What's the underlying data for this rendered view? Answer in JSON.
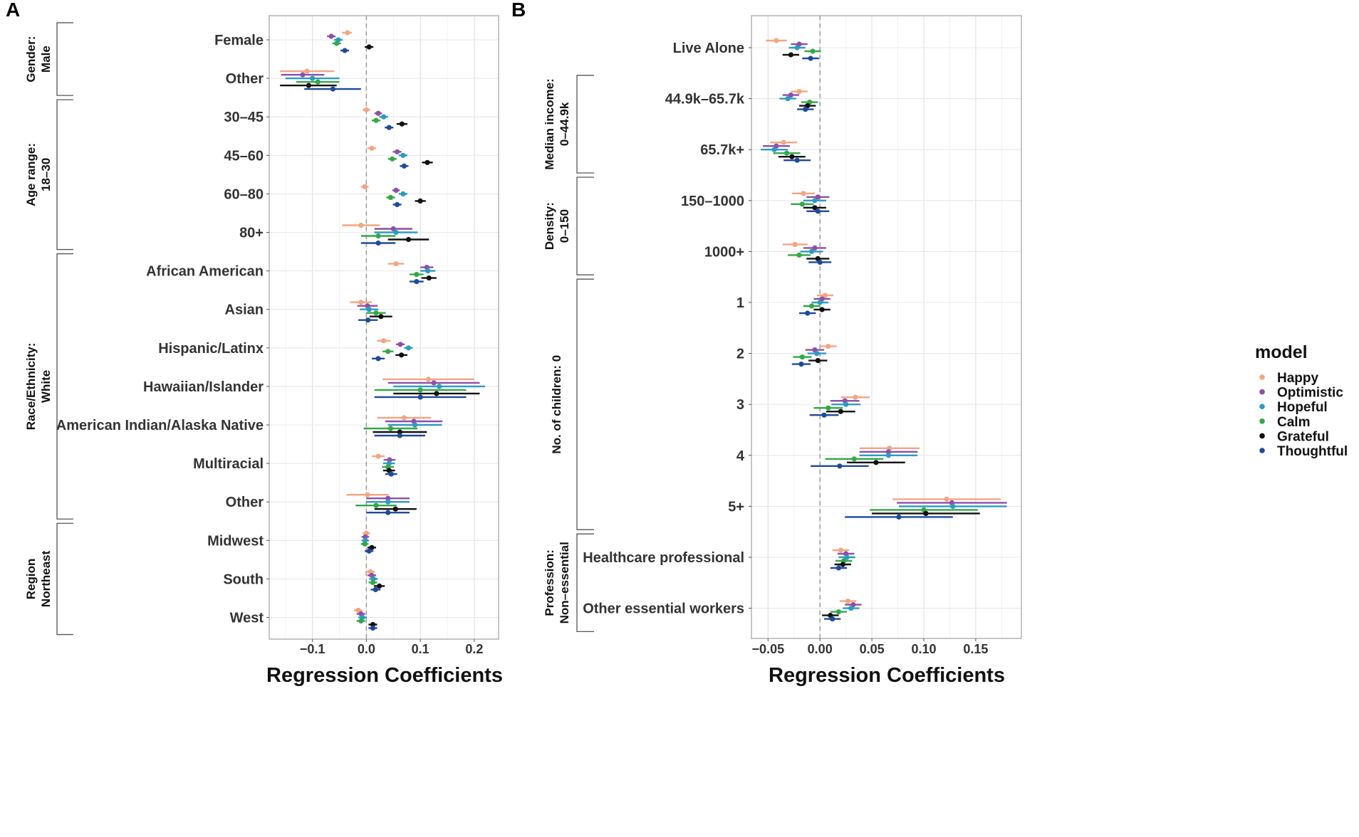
{
  "panels": [
    {
      "letter": "A",
      "xlabel": "Regression Coefficients",
      "xlim": [
        -0.18,
        0.245
      ],
      "xticks": [
        -0.1,
        0.0,
        0.1,
        0.2
      ],
      "xtick_labels": [
        "−0.1",
        "0.0",
        "0.1",
        "0.2"
      ],
      "groups": [
        {
          "line1": "Gender:",
          "line2": "Male",
          "first": 0,
          "last": 1
        },
        {
          "line1": "Age range:",
          "line2": "18–30",
          "first": 2,
          "last": 5
        },
        {
          "line1": "Race/Ethnicity:",
          "line2": "White",
          "first": 6,
          "last": 12
        },
        {
          "line1": "Region",
          "line2": "Northeast",
          "first": 13,
          "last": 15
        }
      ],
      "categories": [
        "Female",
        "Other",
        "30–45",
        "45–60",
        "60–80",
        "80+",
        "African American",
        "Asian",
        "Hispanic/Latinx",
        "Hawaiian/Islander",
        "American Indian/Alaska Native",
        "Multiracial",
        "Other",
        "Midwest",
        "South",
        "West"
      ],
      "series": [
        {
          "name": "Happy",
          "estimate": [
            -0.035,
            -0.11,
            0.0,
            0.01,
            -0.003,
            -0.01,
            0.055,
            -0.01,
            0.032,
            0.115,
            0.07,
            0.022,
            0.002,
            0.0,
            0.007,
            -0.015
          ],
          "lo": [
            -0.045,
            -0.16,
            -0.007,
            0.002,
            -0.01,
            -0.045,
            0.04,
            -0.03,
            0.02,
            0.03,
            0.02,
            0.01,
            -0.037,
            -0.007,
            -0.002,
            -0.023
          ],
          "hi": [
            -0.027,
            -0.06,
            0.007,
            0.018,
            0.004,
            0.025,
            0.07,
            0.01,
            0.045,
            0.2,
            0.12,
            0.034,
            0.041,
            0.007,
            0.016,
            -0.007
          ]
        },
        {
          "name": "Optimistic",
          "estimate": [
            -0.065,
            -0.118,
            0.022,
            0.057,
            0.055,
            0.05,
            0.112,
            0.002,
            0.063,
            0.125,
            0.088,
            0.043,
            0.04,
            -0.002,
            0.01,
            -0.01
          ],
          "lo": [
            -0.073,
            -0.158,
            0.015,
            0.049,
            0.048,
            0.015,
            0.1,
            -0.017,
            0.055,
            0.04,
            0.035,
            0.032,
            0.0,
            -0.009,
            0.002,
            -0.018
          ],
          "hi": [
            -0.057,
            -0.078,
            0.029,
            0.065,
            0.062,
            0.085,
            0.124,
            0.021,
            0.071,
            0.21,
            0.141,
            0.054,
            0.08,
            0.005,
            0.018,
            -0.002
          ]
        },
        {
          "name": "Hopeful",
          "estimate": [
            -0.052,
            -0.1,
            0.032,
            0.068,
            0.068,
            0.055,
            0.114,
            0.005,
            0.078,
            0.135,
            0.09,
            0.042,
            0.04,
            -0.002,
            0.013,
            -0.007
          ],
          "lo": [
            -0.06,
            -0.15,
            0.024,
            0.06,
            0.06,
            0.015,
            0.1,
            -0.012,
            0.07,
            0.05,
            0.04,
            0.031,
            0.0,
            -0.009,
            0.005,
            -0.015
          ],
          "hi": [
            -0.044,
            -0.05,
            0.04,
            0.076,
            0.076,
            0.095,
            0.128,
            0.022,
            0.086,
            0.22,
            0.14,
            0.053,
            0.08,
            0.005,
            0.021,
            0.001
          ]
        },
        {
          "name": "Calm",
          "estimate": [
            -0.055,
            -0.09,
            0.018,
            0.048,
            0.045,
            0.022,
            0.093,
            0.018,
            0.04,
            0.1,
            0.045,
            0.04,
            0.018,
            -0.003,
            0.012,
            -0.01
          ],
          "lo": [
            -0.063,
            -0.13,
            0.01,
            0.04,
            0.037,
            -0.01,
            0.08,
            0.0,
            0.03,
            0.015,
            -0.005,
            0.029,
            -0.02,
            -0.01,
            0.004,
            -0.018
          ],
          "hi": [
            -0.047,
            -0.05,
            0.026,
            0.056,
            0.053,
            0.054,
            0.106,
            0.036,
            0.05,
            0.185,
            0.095,
            0.051,
            0.056,
            0.004,
            0.02,
            -0.002
          ]
        },
        {
          "name": "Grateful",
          "estimate": [
            0.005,
            -0.107,
            0.066,
            0.113,
            0.1,
            0.078,
            0.116,
            0.027,
            0.065,
            0.13,
            0.062,
            0.042,
            0.054,
            0.01,
            0.024,
            0.012
          ],
          "lo": [
            -0.003,
            -0.16,
            0.056,
            0.103,
            0.09,
            0.04,
            0.102,
            0.006,
            0.054,
            0.05,
            0.012,
            0.031,
            0.015,
            0.002,
            0.014,
            0.004
          ],
          "hi": [
            0.013,
            -0.055,
            0.076,
            0.123,
            0.11,
            0.116,
            0.13,
            0.048,
            0.076,
            0.21,
            0.112,
            0.053,
            0.093,
            0.018,
            0.034,
            0.02
          ]
        },
        {
          "name": "Thoughtful",
          "estimate": [
            -0.04,
            -0.062,
            0.042,
            0.07,
            0.057,
            0.022,
            0.093,
            0.003,
            0.022,
            0.1,
            0.062,
            0.046,
            0.04,
            0.005,
            0.017,
            0.012
          ],
          "lo": [
            -0.048,
            -0.115,
            0.034,
            0.062,
            0.049,
            -0.01,
            0.08,
            -0.015,
            0.01,
            0.015,
            0.015,
            0.035,
            0.0,
            -0.003,
            0.008,
            0.004
          ],
          "hi": [
            -0.032,
            -0.01,
            0.05,
            0.078,
            0.065,
            0.054,
            0.106,
            0.021,
            0.034,
            0.185,
            0.109,
            0.057,
            0.08,
            0.013,
            0.026,
            0.02
          ]
        }
      ]
    },
    {
      "letter": "B",
      "xlabel": "Regression Coefficients",
      "xlim": [
        -0.066,
        0.194
      ],
      "xticks": [
        -0.05,
        0.0,
        0.05,
        0.1,
        0.15
      ],
      "xtick_labels": [
        "−0.05",
        "0.00",
        "0.05",
        "0.10",
        "0.15"
      ],
      "groups": [
        {
          "line1": "Median income:",
          "line2": "0–44.9k",
          "first": 1,
          "last": 2
        },
        {
          "line1": "Density:",
          "line2": "0–150",
          "first": 3,
          "last": 4
        },
        {
          "line1": "No. of children: 0",
          "line2": "",
          "first": 5,
          "last": 9
        },
        {
          "line1": "Profession:",
          "line2": "Non–essential",
          "first": 10,
          "last": 11
        }
      ],
      "categories": [
        "Live Alone",
        "44.9k–65.7k",
        "65.7k+",
        "150–1000",
        "1000+",
        "1",
        "2",
        "3",
        "4",
        "5+",
        "Healthcare professional",
        "Other essential workers"
      ],
      "series": [
        {
          "name": "Happy",
          "estimate": [
            -0.042,
            -0.02,
            -0.035,
            -0.016,
            -0.024,
            0.005,
            0.008,
            0.034,
            0.067,
            0.122,
            0.02,
            0.027
          ],
          "lo": [
            -0.052,
            -0.028,
            -0.048,
            -0.027,
            -0.036,
            -0.003,
            0.0,
            0.02,
            0.038,
            0.07,
            0.012,
            0.019
          ],
          "hi": [
            -0.032,
            -0.012,
            -0.022,
            -0.005,
            -0.012,
            0.013,
            0.016,
            0.048,
            0.096,
            0.174,
            0.028,
            0.035
          ]
        },
        {
          "name": "Optimistic",
          "estimate": [
            -0.02,
            -0.028,
            -0.042,
            -0.002,
            -0.005,
            0.002,
            -0.005,
            0.024,
            0.066,
            0.127,
            0.025,
            0.032
          ],
          "lo": [
            -0.028,
            -0.036,
            -0.055,
            -0.013,
            -0.016,
            -0.006,
            -0.014,
            0.01,
            0.038,
            0.074,
            0.017,
            0.024
          ],
          "hi": [
            -0.012,
            -0.02,
            -0.029,
            0.009,
            0.006,
            0.01,
            0.004,
            0.038,
            0.094,
            0.18,
            0.033,
            0.04
          ]
        },
        {
          "name": "Hopeful",
          "estimate": [
            -0.022,
            -0.031,
            -0.044,
            -0.005,
            -0.008,
            0.0,
            -0.003,
            0.025,
            0.066,
            0.128,
            0.026,
            0.03
          ],
          "lo": [
            -0.03,
            -0.039,
            -0.057,
            -0.016,
            -0.019,
            -0.008,
            -0.012,
            0.011,
            0.038,
            0.076,
            0.018,
            0.022
          ],
          "hi": [
            -0.014,
            -0.023,
            -0.031,
            0.006,
            0.003,
            0.008,
            0.006,
            0.039,
            0.094,
            0.18,
            0.034,
            0.038
          ]
        },
        {
          "name": "Calm",
          "estimate": [
            -0.007,
            -0.01,
            -0.032,
            -0.017,
            -0.02,
            -0.008,
            -0.017,
            0.008,
            0.033,
            0.1,
            0.023,
            0.018
          ],
          "lo": [
            -0.015,
            -0.018,
            -0.045,
            -0.028,
            -0.031,
            -0.016,
            -0.026,
            -0.006,
            0.005,
            0.048,
            0.015,
            0.01
          ],
          "hi": [
            0.001,
            -0.002,
            -0.019,
            -0.006,
            -0.009,
            0.0,
            -0.008,
            0.022,
            0.061,
            0.152,
            0.031,
            0.026
          ]
        },
        {
          "name": "Grateful",
          "estimate": [
            -0.028,
            -0.012,
            -0.027,
            -0.005,
            -0.002,
            0.002,
            -0.002,
            0.02,
            0.054,
            0.102,
            0.022,
            0.01
          ],
          "lo": [
            -0.036,
            -0.02,
            -0.04,
            -0.016,
            -0.013,
            -0.006,
            -0.011,
            0.006,
            0.026,
            0.05,
            0.014,
            0.002
          ],
          "hi": [
            -0.02,
            -0.004,
            -0.014,
            0.006,
            0.009,
            0.01,
            0.007,
            0.034,
            0.082,
            0.154,
            0.03,
            0.018
          ]
        },
        {
          "name": "Thoughtful",
          "estimate": [
            -0.009,
            -0.014,
            -0.022,
            -0.002,
            0.0,
            -0.012,
            -0.018,
            0.004,
            0.019,
            0.076,
            0.018,
            0.012
          ],
          "lo": [
            -0.017,
            -0.022,
            -0.035,
            -0.013,
            -0.011,
            -0.02,
            -0.027,
            -0.01,
            -0.009,
            0.024,
            0.01,
            0.004
          ],
          "hi": [
            -0.001,
            -0.006,
            -0.009,
            0.009,
            0.011,
            -0.004,
            -0.009,
            0.018,
            0.047,
            0.128,
            0.026,
            0.02
          ]
        }
      ]
    }
  ],
  "legend": {
    "title": "model",
    "items": [
      {
        "label": "Happy",
        "color": "#F4A582"
      },
      {
        "label": "Optimistic",
        "color": "#8E4FA8"
      },
      {
        "label": "Hopeful",
        "color": "#2B9BC2"
      },
      {
        "label": "Calm",
        "color": "#33A846"
      },
      {
        "label": "Grateful",
        "color": "#111111"
      },
      {
        "label": "Thoughtful",
        "color": "#1F4A9A"
      }
    ]
  },
  "chart_data": [
    {
      "type": "forest",
      "panel": "A",
      "xlabel": "Regression Coefficients",
      "xlim": [
        -0.18,
        0.245
      ],
      "categories": [
        "Female",
        "Other",
        "30–45",
        "45–60",
        "60–80",
        "80+",
        "African American",
        "Asian",
        "Hispanic/Latinx",
        "Hawaiian/Islander",
        "American Indian/Alaska Native",
        "Multiracial",
        "Other",
        "Midwest",
        "South",
        "West"
      ],
      "series_names": [
        "Happy",
        "Optimistic",
        "Hopeful",
        "Calm",
        "Grateful",
        "Thoughtful"
      ]
    },
    {
      "type": "forest",
      "panel": "B",
      "xlabel": "Regression Coefficients",
      "xlim": [
        -0.066,
        0.194
      ],
      "categories": [
        "Live Alone",
        "44.9k–65.7k",
        "65.7k+",
        "150–1000",
        "1000+",
        "1",
        "2",
        "3",
        "4",
        "5+",
        "Healthcare professional",
        "Other essential workers"
      ],
      "series_names": [
        "Happy",
        "Optimistic",
        "Hopeful",
        "Calm",
        "Grateful",
        "Thoughtful"
      ]
    }
  ]
}
